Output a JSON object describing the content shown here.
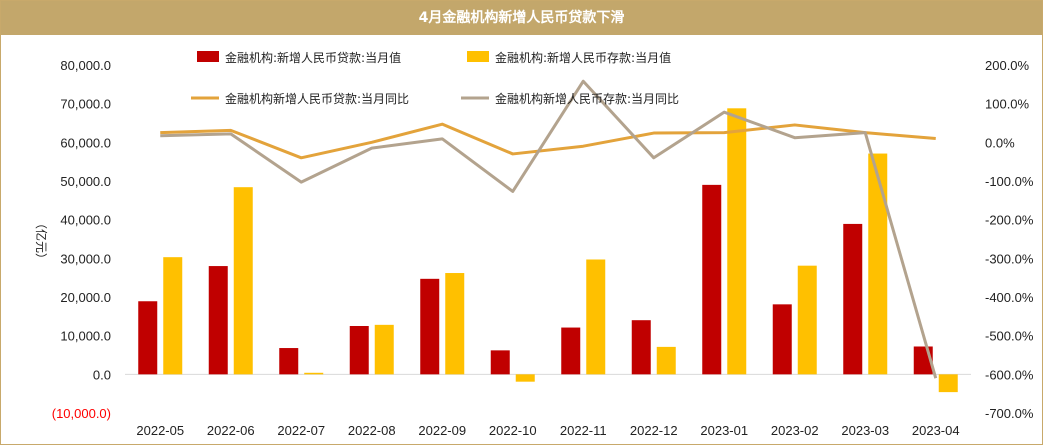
{
  "page_title": "4月金融机构新增人民币贷款下滑",
  "y_left_unit": "（亿元）",
  "colors": {
    "header_bg": "#c3a76b",
    "loan_bar": "#c00000",
    "deposit_bar": "#ffc000",
    "loan_yoy_line": "#e3a33b",
    "deposit_yoy_line": "#b3a38e",
    "negative_tick": "#ff0000"
  },
  "chart_data": {
    "type": "bar",
    "title": "4月金融机构新增人民币贷款下滑",
    "categories": [
      "2022-05",
      "2022-06",
      "2022-07",
      "2022-08",
      "2022-09",
      "2022-10",
      "2022-11",
      "2022-12",
      "2023-01",
      "2023-02",
      "2023-03",
      "2023-04"
    ],
    "series": [
      {
        "name": "金融机构:新增人民币贷款:当月值",
        "type": "bar",
        "axis": "left",
        "values": [
          18900,
          28000,
          6800,
          12500,
          24700,
          6200,
          12100,
          14000,
          49000,
          18100,
          38900,
          7200
        ]
      },
      {
        "name": "金融机构:新增人民币存款:当月值",
        "type": "bar",
        "axis": "left",
        "values": [
          30300,
          48400,
          400,
          12800,
          26200,
          -1900,
          29700,
          7100,
          68800,
          28100,
          57100,
          -4600
        ]
      },
      {
        "name": "金融机构新增人民币贷款:当月同比",
        "type": "line",
        "axis": "right",
        "values": [
          25,
          31,
          -40,
          0,
          47,
          -30,
          -10,
          24,
          25,
          45,
          25,
          10
        ]
      },
      {
        "name": "金融机构新增人民币存款:当月同比",
        "type": "line",
        "axis": "right",
        "values": [
          17,
          22,
          -103,
          -15,
          9,
          -127,
          158,
          -40,
          78,
          12,
          25,
          -610
        ]
      }
    ],
    "y_left": {
      "ylim": [
        -10000,
        80000
      ],
      "ticks": [
        "(10,000.0)",
        "0.0",
        "10,000.0",
        "20,000.0",
        "30,000.0",
        "40,000.0",
        "50,000.0",
        "60,000.0",
        "70,000.0",
        "80,000.0"
      ]
    },
    "y_right": {
      "ylim": [
        -700,
        200
      ],
      "ticks": [
        "-700.0%",
        "-600.0%",
        "-500.0%",
        "-400.0%",
        "-300.0%",
        "-200.0%",
        "-100.0%",
        "0.0%",
        "100.0%",
        "200.0%"
      ]
    },
    "legend_position": "top",
    "grid": false
  }
}
